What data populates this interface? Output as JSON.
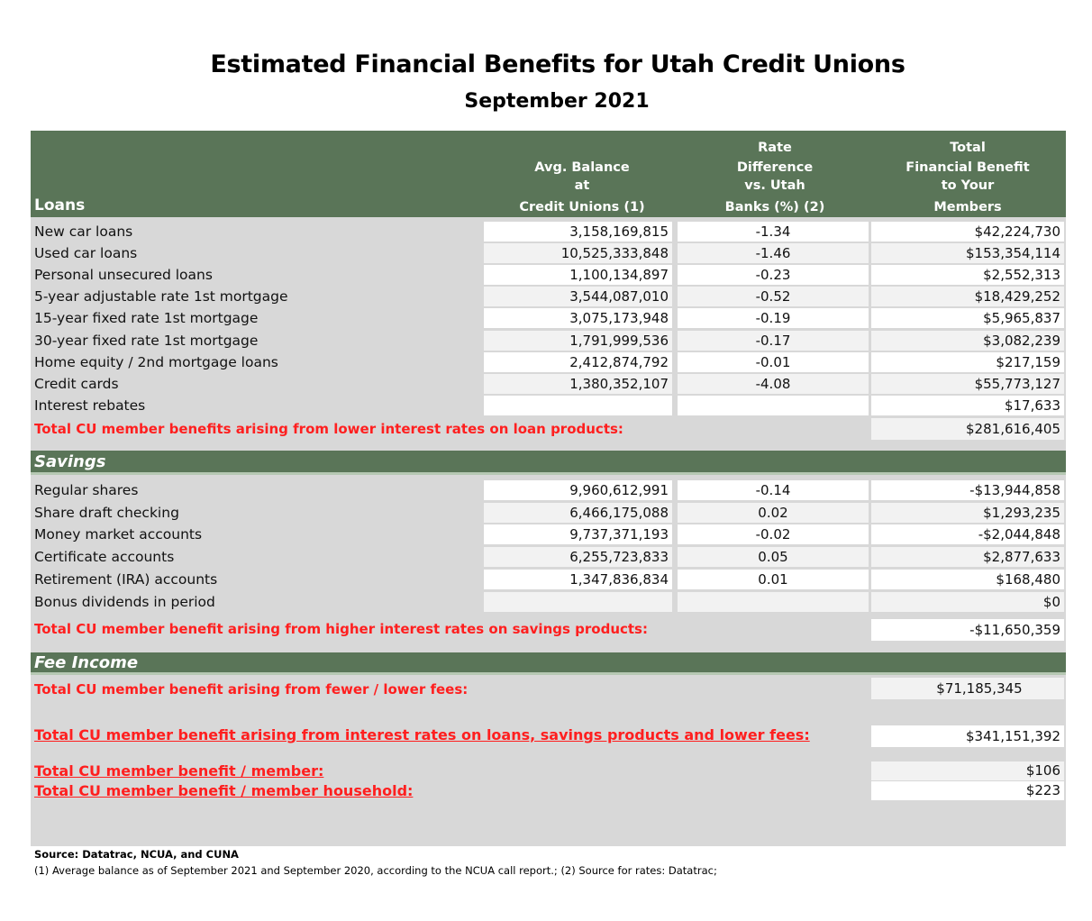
{
  "title": "Estimated Financial Benefits for Utah Credit Unions",
  "subtitle": "September 2021",
  "header": {
    "loans_label": "Loans",
    "col_balance": [
      "Avg. Balance",
      "at",
      "Credit Unions (1)"
    ],
    "col_rate": [
      "Rate",
      "Difference",
      "vs. Utah",
      "Banks (%) (2)"
    ],
    "col_total": [
      "Total",
      "Financial Benefit",
      "to Your",
      "Members"
    ]
  },
  "loans": [
    {
      "name": "New car loans",
      "balance": "3,158,169,815",
      "rate": "-1.34",
      "total": "$42,224,730"
    },
    {
      "name": "Used car loans",
      "balance": "10,525,333,848",
      "rate": "-1.46",
      "total": "$153,354,114"
    },
    {
      "name": "Personal unsecured loans",
      "balance": "1,100,134,897",
      "rate": "-0.23",
      "total": "$2,552,313"
    },
    {
      "name": "5-year adjustable rate 1st mortgage",
      "balance": "3,544,087,010",
      "rate": "-0.52",
      "total": "$18,429,252"
    },
    {
      "name": "15-year fixed rate 1st mortgage",
      "balance": "3,075,173,948",
      "rate": "-0.19",
      "total": "$5,965,837"
    },
    {
      "name": "30-year fixed rate 1st mortgage",
      "balance": "1,791,999,536",
      "rate": "-0.17",
      "total": "$3,082,239"
    },
    {
      "name": "Home equity / 2nd mortgage loans",
      "balance": "2,412,874,792",
      "rate": "-0.01",
      "total": "$217,159"
    },
    {
      "name": "Credit cards",
      "balance": "1,380,352,107",
      "rate": "-4.08",
      "total": "$55,773,127"
    },
    {
      "name": "Interest rebates",
      "balance": "",
      "rate": "",
      "total": "$17,633"
    }
  ],
  "loans_total": {
    "label": "Total CU member benefits arising from lower interest rates on loan products:",
    "value": "$281,616,405"
  },
  "savings_label": "Savings",
  "savings": [
    {
      "name": "Regular shares",
      "balance": "9,960,612,991",
      "rate": "-0.14",
      "total": "-$13,944,858"
    },
    {
      "name": "Share draft checking",
      "balance": "6,466,175,088",
      "rate": "0.02",
      "total": "$1,293,235"
    },
    {
      "name": "Money market accounts",
      "balance": "9,737,371,193",
      "rate": "-0.02",
      "total": "-$2,044,848"
    },
    {
      "name": "Certificate accounts",
      "balance": "6,255,723,833",
      "rate": "0.05",
      "total": "$2,877,633"
    },
    {
      "name": "Retirement (IRA) accounts",
      "balance": "1,347,836,834",
      "rate": "0.01",
      "total": "$168,480"
    },
    {
      "name": "Bonus dividends in period",
      "balance": "",
      "rate": "",
      "total": "$0"
    }
  ],
  "savings_total": {
    "label": "Total CU member benefit arising from higher interest rates on savings products:",
    "value": "-$11,650,359"
  },
  "fee_label": "Fee Income",
  "fee_total": {
    "label": "Total CU member benefit arising from fewer / lower fees:",
    "value": "$71,185,345"
  },
  "grand_total": {
    "label": "Total CU member benefit arising from interest rates on loans, savings products and lower fees:",
    "value": "$341,151,392"
  },
  "per_member": {
    "label": "Total CU member benefit / member:",
    "value": "$106"
  },
  "per_household": {
    "label": "Total CU member benefit / member household:",
    "value": "$223"
  },
  "source": "Source: Datatrac, NCUA, and CUNA",
  "footnote": "(1) Average balance as of September 2021 and September 2020, according to the NCUA call report.;  (2) Source for rates: Datatrac;",
  "colors": {
    "header_green": "#5a7558",
    "panel_gray": "#d8d8d8",
    "total_red": "#ff1f1f"
  }
}
